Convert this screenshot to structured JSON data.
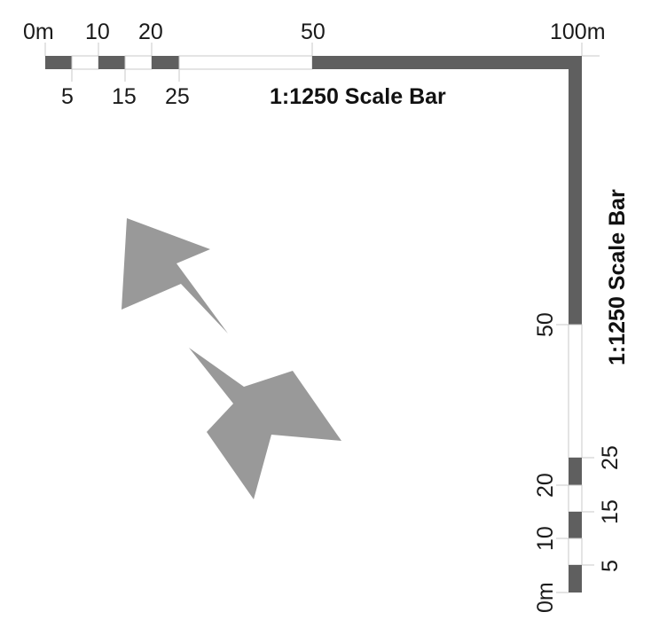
{
  "colors": {
    "bar_dark": "#5f5f5f",
    "bar_light": "#ffffff",
    "bar_outline": "#c8c8c8",
    "arrow_fill": "#999999",
    "text": "#1a1a1a"
  },
  "horizontal_scale": {
    "title": "1:1250 Scale Bar",
    "top_labels": [
      "0m",
      "10",
      "20",
      "50",
      "100m"
    ],
    "bottom_labels": [
      "5",
      "15",
      "25"
    ]
  },
  "vertical_scale": {
    "title": "1:1250 Scale Bar",
    "left_labels": [
      "0m",
      "10",
      "20",
      "50"
    ],
    "right_labels": [
      "5",
      "15",
      "25"
    ]
  },
  "icons": [
    "north-arrow-icon",
    "compass-point-icon"
  ]
}
